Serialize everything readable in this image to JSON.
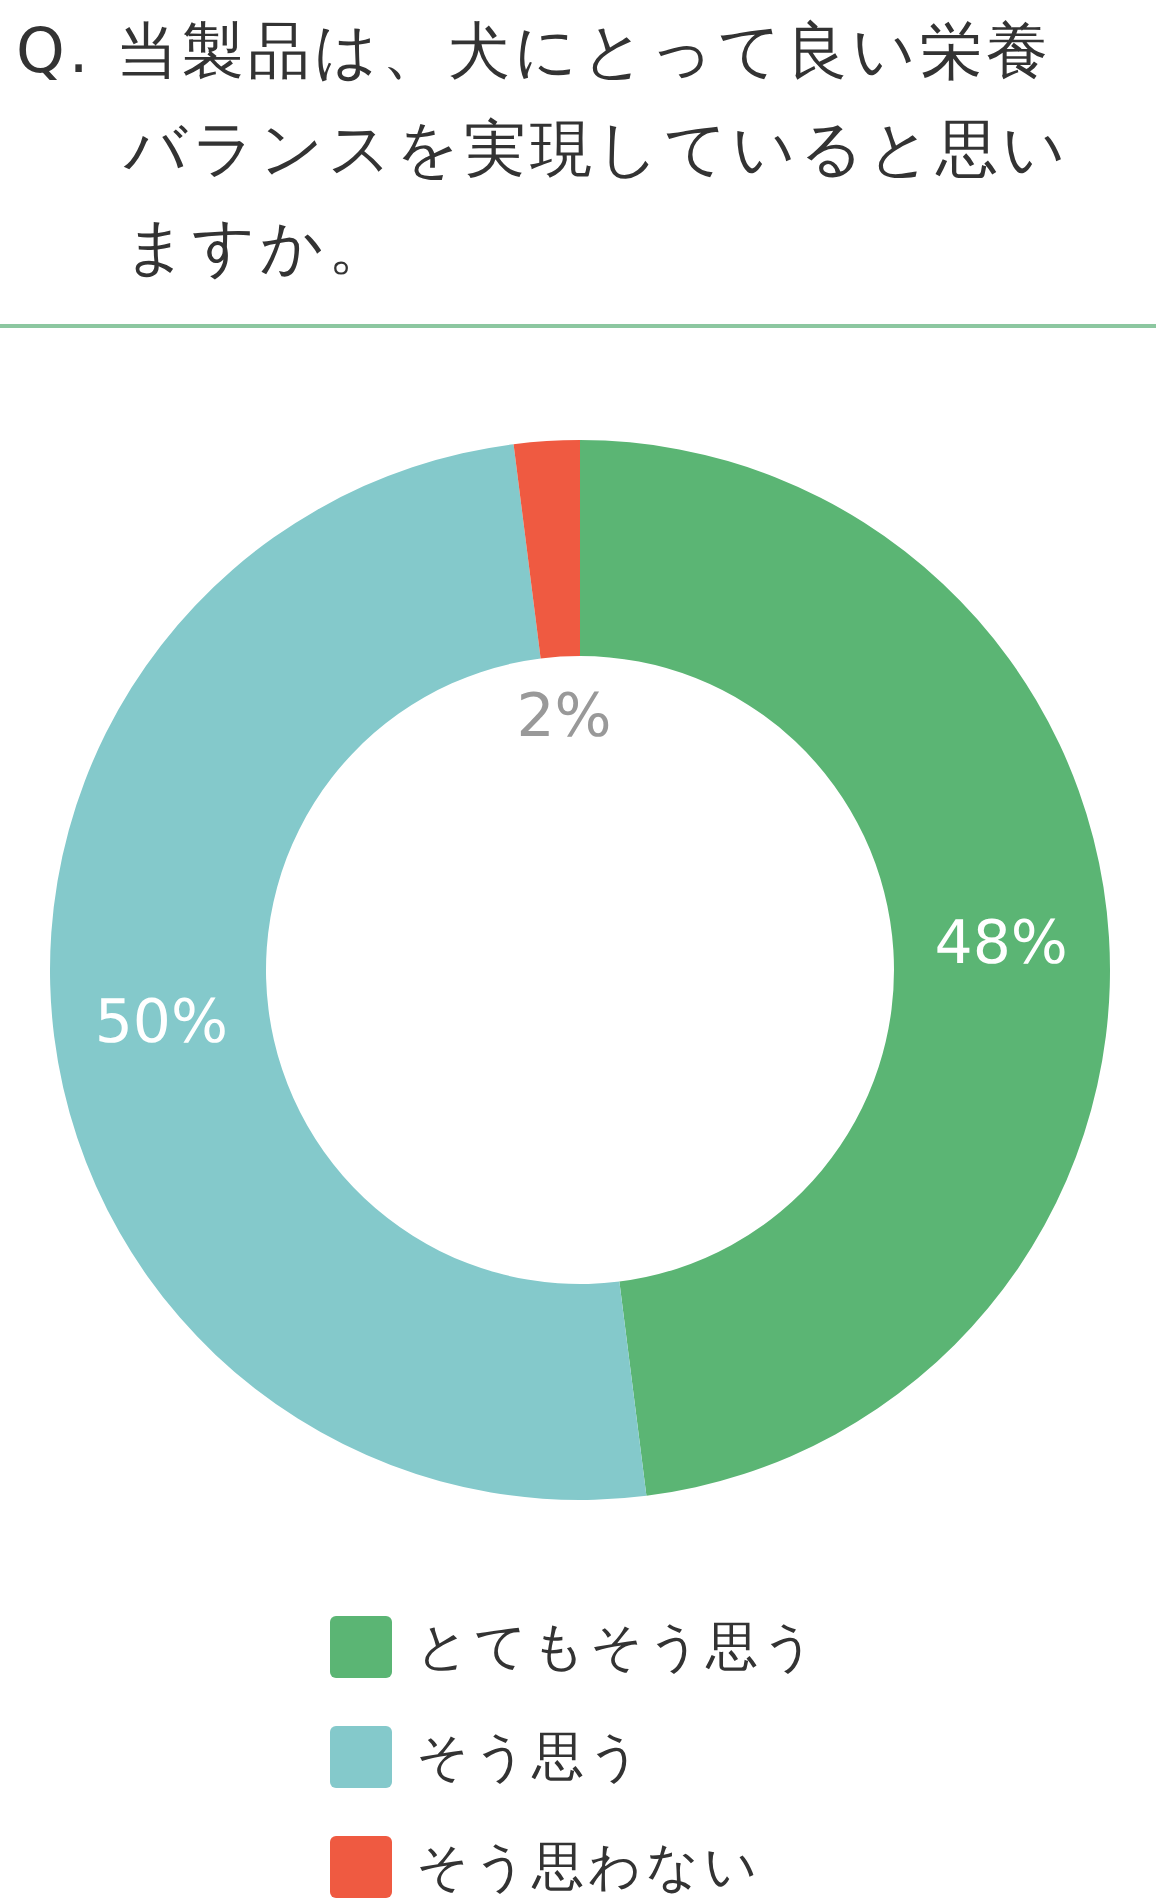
{
  "chart_data": {
    "type": "donut",
    "title": "Q. 当製品は、犬にとって良い栄養バランスを実現していると思いますか。",
    "categories": [
      "とてもそう思う",
      "そう思う",
      "そう思わない"
    ],
    "values": [
      48,
      50,
      2
    ],
    "value_labels": [
      "48%",
      "50%",
      "2%"
    ],
    "colors": [
      "#5bb574",
      "#84c9cb",
      "#ef5a41"
    ],
    "legend": "bottom"
  }
}
